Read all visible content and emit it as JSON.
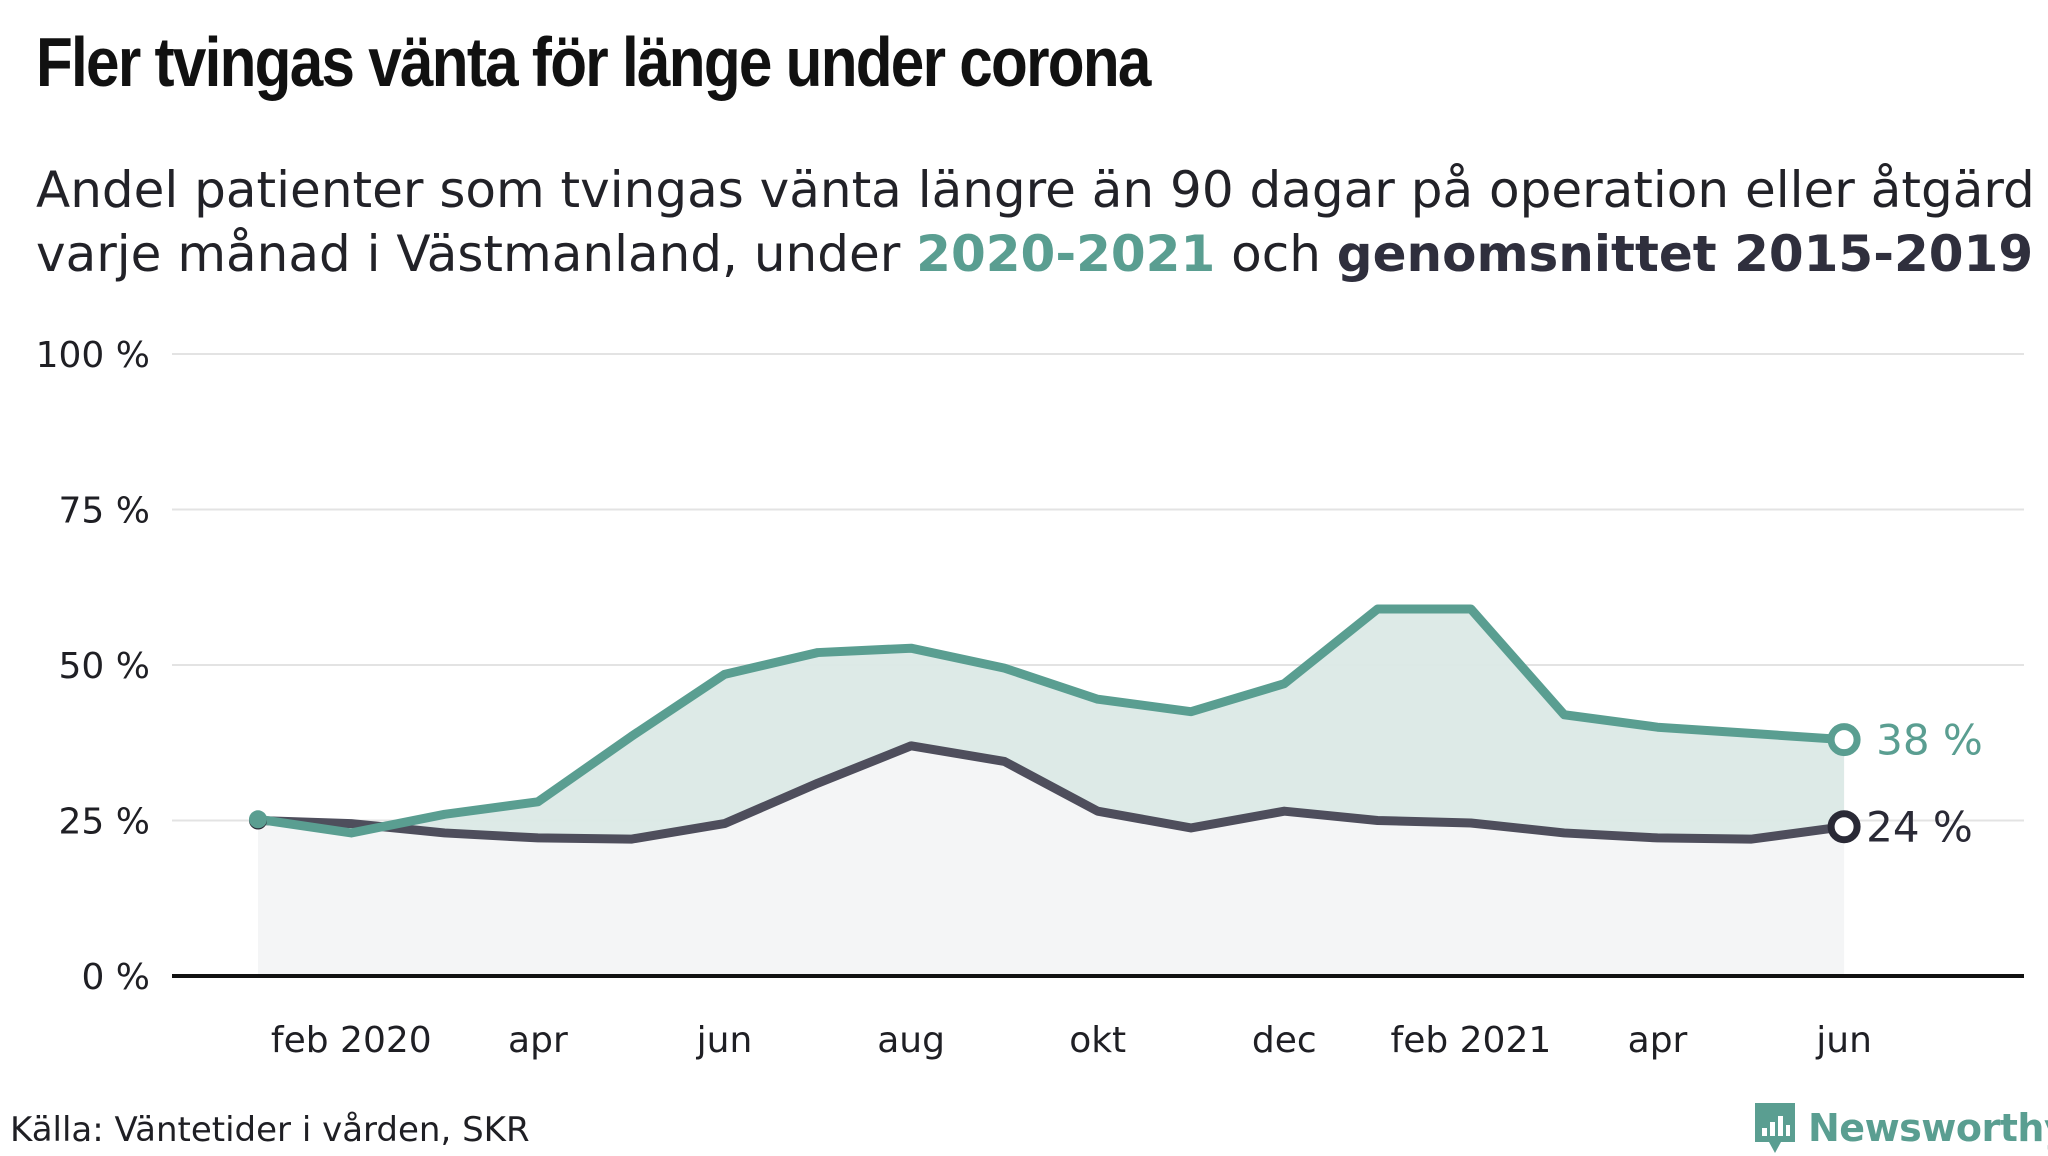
{
  "title": "Fler tvingas vänta för länge under corona",
  "subtitle": {
    "line1": "Andel patienter som tvingas vänta längre än 90 dagar på operation eller åtgärd",
    "line2_prefix": "varje månad i Västmanland, under ",
    "highlight_a": "2020-2021",
    "middle": " och ",
    "highlight_b": "genomsnittet 2015-2019"
  },
  "source": "Källa: Väntetider i vården, SKR",
  "brand": {
    "name": "Newsworthy",
    "icon": "newsworthy-logo-icon"
  },
  "colors": {
    "series_a": "#5a9e91",
    "series_b": "#4e4e5c",
    "band": "#dbe9e6",
    "axis": "#111111",
    "grid": "#e3e3e3"
  },
  "chart_data": {
    "type": "line",
    "x": [
      "2020-01",
      "2020-02",
      "2020-03",
      "2020-04",
      "2020-05",
      "2020-06",
      "2020-07",
      "2020-08",
      "2020-09",
      "2020-10",
      "2020-11",
      "2020-12",
      "2021-01",
      "2021-02",
      "2021-03",
      "2021-04",
      "2021-05",
      "2021-06"
    ],
    "x_tick_labels": [
      {
        "x": "2020-02",
        "label": "feb 2020"
      },
      {
        "x": "2020-04",
        "label": "apr"
      },
      {
        "x": "2020-06",
        "label": "jun"
      },
      {
        "x": "2020-08",
        "label": "aug"
      },
      {
        "x": "2020-10",
        "label": "okt"
      },
      {
        "x": "2020-12",
        "label": "dec"
      },
      {
        "x": "2021-02",
        "label": "feb 2021"
      },
      {
        "x": "2021-04",
        "label": "apr"
      },
      {
        "x": "2021-06",
        "label": "jun"
      }
    ],
    "y_ticks": [
      0,
      25,
      50,
      75,
      100
    ],
    "y_tick_labels": [
      "0 %",
      "25 %",
      "50 %",
      "75 %",
      "100 %"
    ],
    "ylim": [
      0,
      100
    ],
    "grid": true,
    "series": [
      {
        "name": "2020-2021",
        "values": [
          25.2,
          23,
          26,
          28,
          38.5,
          48.5,
          52,
          52.7,
          49.5,
          44.5,
          42.5,
          47,
          59,
          59,
          42,
          40,
          39,
          38
        ],
        "end_label": "38 %"
      },
      {
        "name": "genomsnittet 2015-2019",
        "values": [
          25,
          24.5,
          23,
          22.2,
          22,
          24.5,
          31,
          37,
          34.5,
          26.5,
          23.8,
          26.5,
          25,
          24.6,
          23,
          22.2,
          22,
          24
        ],
        "end_label": "24 %"
      }
    ]
  }
}
